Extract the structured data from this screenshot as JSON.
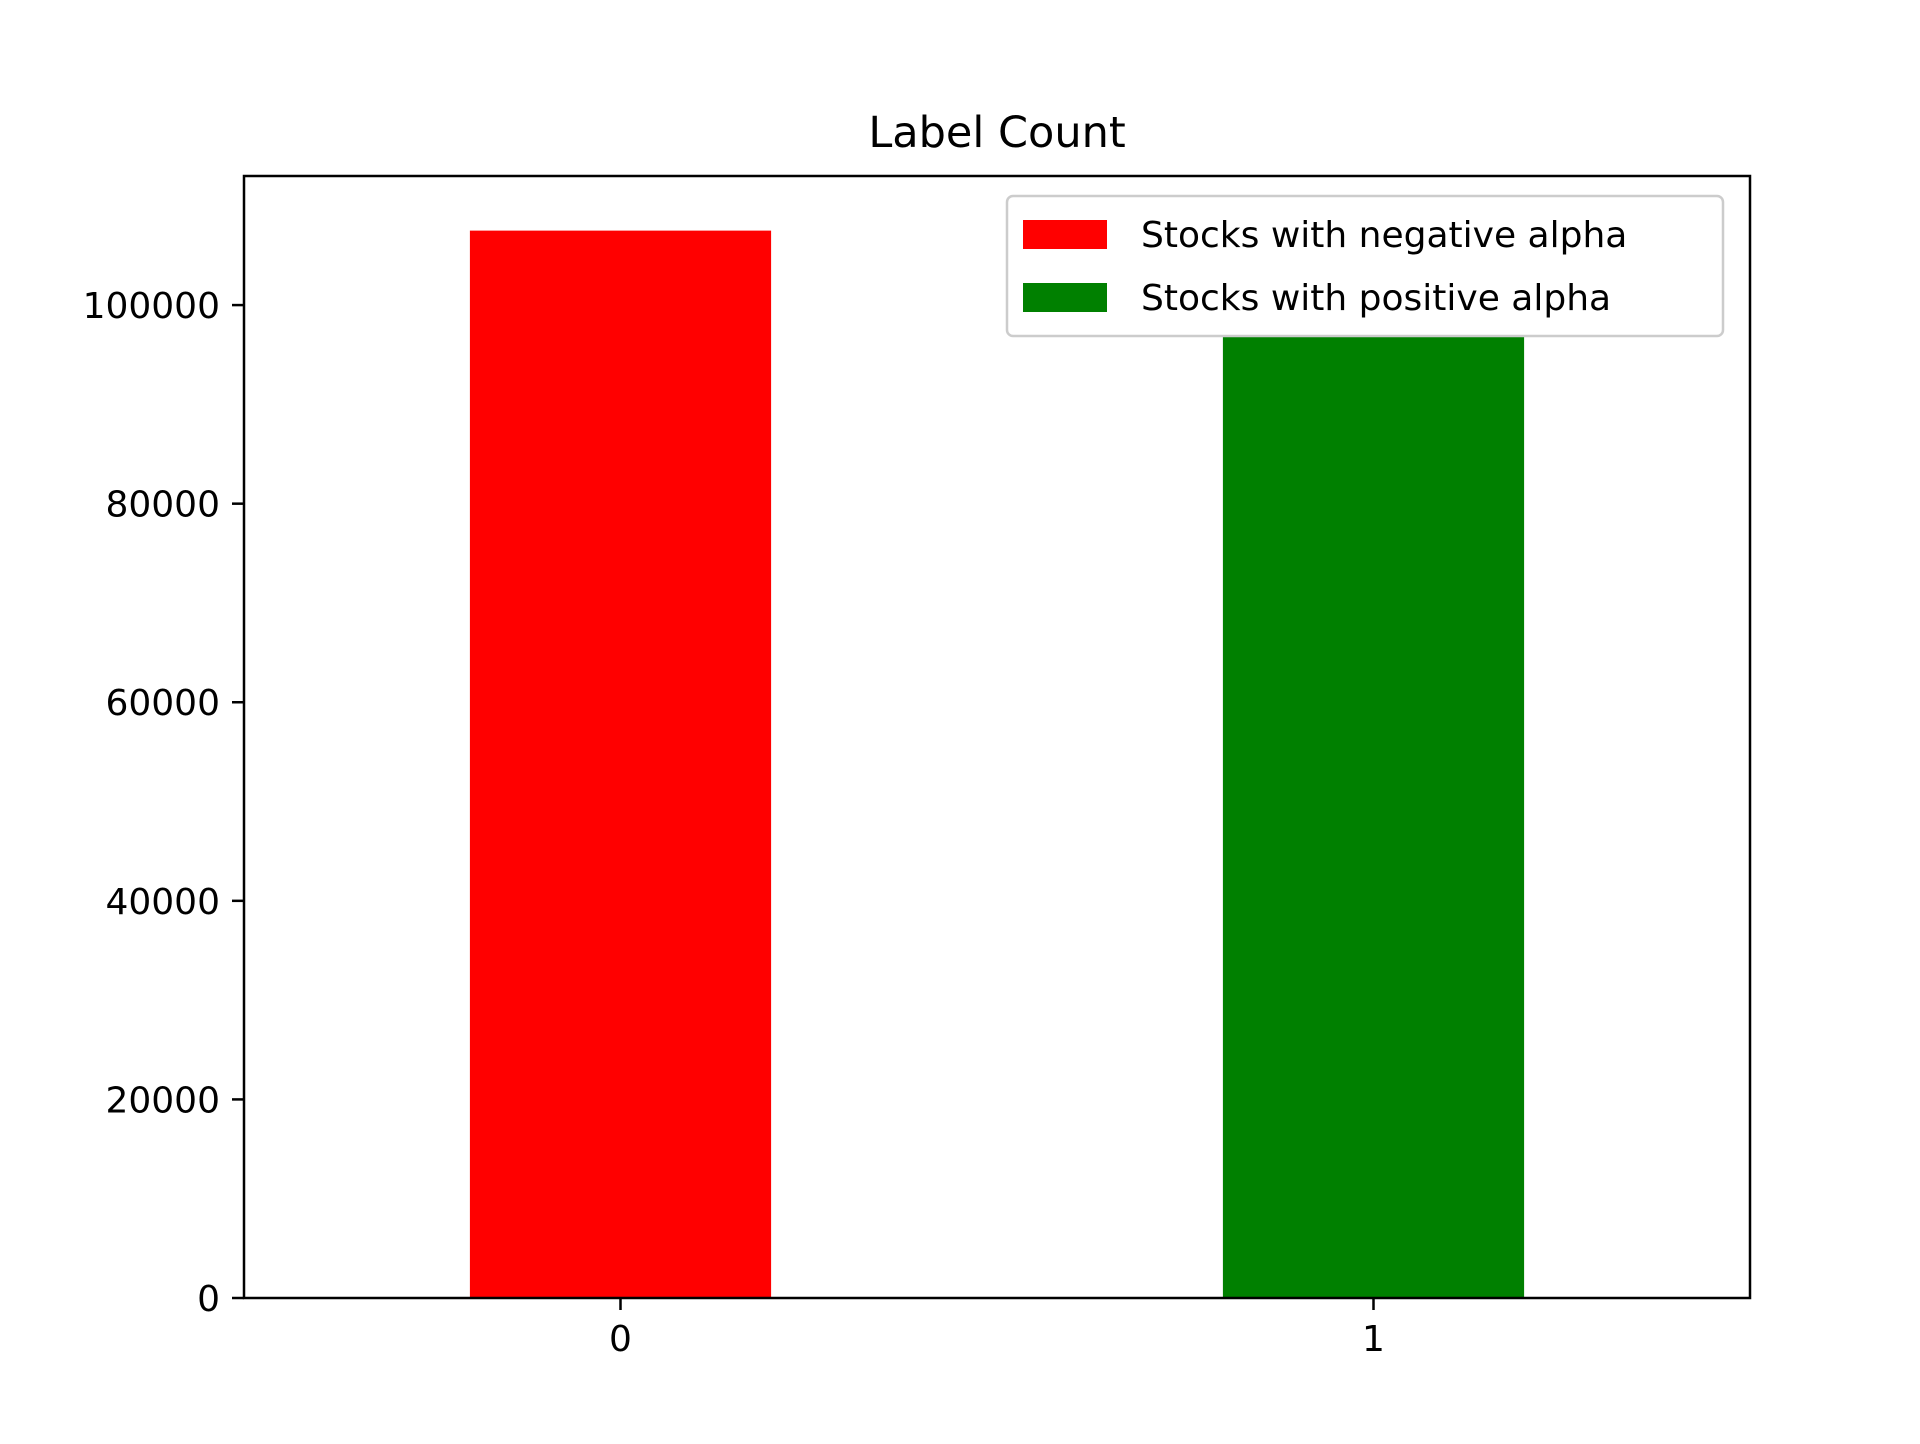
{
  "chart_data": {
    "type": "bar",
    "title": "Label Count",
    "xlabel": "",
    "ylabel": "",
    "categories": [
      "0",
      "1"
    ],
    "series": [
      {
        "name": "Stocks with negative alpha",
        "category": "0",
        "value": 107500,
        "color": "#ff0000"
      },
      {
        "name": "Stocks with positive alpha",
        "category": "1",
        "value": 96800,
        "color": "#008000"
      }
    ],
    "x_range": [
      -0.5,
      1.5
    ],
    "ylim": [
      0,
      113000
    ],
    "yticks": [
      0,
      20000,
      40000,
      60000,
      80000,
      100000
    ],
    "ytick_labels": [
      "0",
      "20000",
      "40000",
      "60000",
      "80000",
      "100000"
    ],
    "grid": false,
    "legend_position": "upper right"
  }
}
